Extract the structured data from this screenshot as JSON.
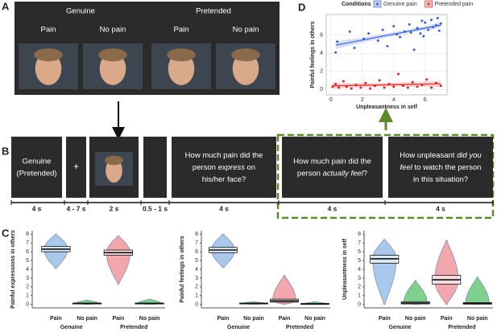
{
  "panel_a": {
    "label": "A",
    "groups": [
      {
        "name": "Genuine",
        "conditions": [
          "Pain",
          "No pain"
        ]
      },
      {
        "name": "Pretended",
        "conditions": [
          "Pain",
          "No pain"
        ]
      }
    ]
  },
  "panel_b": {
    "label": "B",
    "screens": [
      {
        "lines": [
          [
            {
              "text": "Genuine"
            }
          ],
          [
            {
              "text": "(Pretended)"
            }
          ]
        ],
        "duration": "4 s"
      },
      {
        "lines": [
          [
            {
              "text": "+"
            }
          ]
        ],
        "duration": "4 - 7 s"
      },
      {
        "lines": [],
        "duration": "2 s",
        "photo": true
      },
      {
        "lines": [],
        "duration": "0.5 - 1 s"
      },
      {
        "lines": [
          [
            {
              "text": "How much pain did the"
            }
          ],
          [
            {
              "text": "person "
            },
            {
              "text": "express",
              "italic": true
            },
            {
              "text": " on"
            }
          ],
          [
            {
              "text": "his/her face?"
            }
          ]
        ],
        "duration": "4 s"
      },
      {
        "lines": [
          [
            {
              "text": "How much pain did the"
            }
          ],
          [
            {
              "text": "person "
            },
            {
              "text": "actually feel",
              "italic": true
            },
            {
              "text": "?"
            }
          ]
        ],
        "duration": "4 s"
      },
      {
        "lines": [
          [
            {
              "text": "How unpleasant "
            },
            {
              "text": "did you",
              "italic": true
            }
          ],
          [
            {
              "text": "feel",
              "italic": true
            },
            {
              "text": " to watch the person"
            }
          ],
          [
            {
              "text": "in this situation?"
            }
          ]
        ],
        "duration": "4 s"
      }
    ]
  },
  "panel_c": {
    "label": "C",
    "plots": [
      {
        "ylabel": "Painful expressions in others",
        "ylim": [
          -0.4,
          8.4
        ],
        "yticks": [
          0,
          1,
          2,
          3,
          4,
          5,
          6,
          7,
          8
        ],
        "categories": [
          "Pain",
          "No pain",
          "Pain",
          "No pain"
        ],
        "groups": [
          "Genuine",
          "Pretended"
        ],
        "violins": [
          {
            "color": "#a9c8ec",
            "range": [
              4.1,
              8
            ],
            "mean": 6.3,
            "ci": [
              6.0,
              6.6
            ]
          },
          {
            "color": "#7fcf8f",
            "range": [
              0,
              0.5
            ],
            "mean": 0.1,
            "ci": [
              0.05,
              0.15
            ]
          },
          {
            "color": "#f2a7ad",
            "range": [
              2.3,
              7.8
            ],
            "mean": 5.9,
            "ci": [
              5.6,
              6.2
            ]
          },
          {
            "color": "#7fcf8f",
            "range": [
              0,
              0.6
            ],
            "mean": 0.1,
            "ci": [
              0.05,
              0.15
            ]
          }
        ]
      },
      {
        "ylabel": "Painful feelings in others",
        "ylim": [
          -0.4,
          8.4
        ],
        "yticks": [
          0,
          1,
          2,
          3,
          4,
          5,
          6,
          7,
          8
        ],
        "categories": [
          "Pain",
          "No pain",
          "Pain",
          "No pain"
        ],
        "groups": [
          "Genuine",
          "Pretended"
        ],
        "violins": [
          {
            "color": "#a9c8ec",
            "range": [
              4.2,
              8
            ],
            "mean": 6.2,
            "ci": [
              5.9,
              6.5
            ]
          },
          {
            "color": "#7fcf8f",
            "range": [
              0,
              0.3
            ],
            "mean": 0.1,
            "ci": [
              0.05,
              0.15
            ]
          },
          {
            "color": "#f2a7ad",
            "range": [
              0,
              3.3
            ],
            "mean": 0.4,
            "ci": [
              0.25,
              0.6
            ]
          },
          {
            "color": "#7fcf8f",
            "range": [
              0,
              0.3
            ],
            "mean": 0.05,
            "ci": [
              0.02,
              0.1
            ]
          }
        ]
      },
      {
        "ylabel": "Unpleasantness in self",
        "ylim": [
          -0.4,
          8.4
        ],
        "yticks": [
          0,
          1,
          2,
          3,
          4,
          5,
          6,
          7,
          8
        ],
        "categories": [
          "Pain",
          "No pain",
          "Pain",
          "No pain"
        ],
        "groups": [
          "Genuine",
          "Pretended"
        ],
        "violins": [
          {
            "color": "#a9c8ec",
            "range": [
              0,
              7.4
            ],
            "mean": 5.2,
            "ci": [
              4.7,
              5.6
            ]
          },
          {
            "color": "#7fcf8f",
            "range": [
              0,
              2.7
            ],
            "mean": 0.15,
            "ci": [
              0.05,
              0.3
            ]
          },
          {
            "color": "#f2a7ad",
            "range": [
              0,
              7.3
            ],
            "mean": 2.8,
            "ci": [
              2.3,
              3.3
            ]
          },
          {
            "color": "#7fcf8f",
            "range": [
              0,
              3.1
            ],
            "mean": 0.1,
            "ci": [
              0.03,
              0.2
            ]
          }
        ]
      }
    ]
  },
  "panel_d": {
    "label": "D",
    "type": "scatter",
    "legend_title": "Conditions",
    "xlabel": "Unpleasantness in self",
    "ylabel": "Painful feelings in others",
    "xlim": [
      -0.3,
      7.4
    ],
    "ylim": [
      -0.6,
      8.3
    ],
    "xticks": [
      0,
      2,
      4,
      6
    ],
    "yticks": [
      0,
      2,
      4,
      6
    ],
    "grid": true,
    "series": [
      {
        "name": "Genuine pain",
        "color": "#3a5fcd",
        "x": [
          0.3,
          0.4,
          1.2,
          1.5,
          2.1,
          2.4,
          3.0,
          3.3,
          3.6,
          4.0,
          4.2,
          4.4,
          4.7,
          5.0,
          5.1,
          5.3,
          5.5,
          5.7,
          5.9,
          6.0,
          6.2,
          6.4,
          6.5,
          6.7,
          6.8,
          7.0,
          6.9,
          5.8
        ],
        "y": [
          4.1,
          5.3,
          6.4,
          4.6,
          5.6,
          6.2,
          5.4,
          6.6,
          4.8,
          7.0,
          6.1,
          5.8,
          6.4,
          7.2,
          6.3,
          4.4,
          6.8,
          6.2,
          5.9,
          7.4,
          6.6,
          7.7,
          6.9,
          7.1,
          7.9,
          7.3,
          6.5,
          7.6
        ]
      },
      {
        "name": "Pretended pain",
        "color": "#d62728",
        "x": [
          0.1,
          0.3,
          0.5,
          0.8,
          1.0,
          1.3,
          1.6,
          1.9,
          2.2,
          2.5,
          2.8,
          3.1,
          3.4,
          3.7,
          4.0,
          4.3,
          4.6,
          4.9,
          5.2,
          5.5,
          5.8,
          6.1,
          6.4,
          6.7,
          7.0
        ],
        "y": [
          0.3,
          0.6,
          0.2,
          0.9,
          0.3,
          0.1,
          0.5,
          0.2,
          0.7,
          0.1,
          0.4,
          1.0,
          0.2,
          0.6,
          0.3,
          1.7,
          0.4,
          0.2,
          0.8,
          0.3,
          0.5,
          1.1,
          0.2,
          0.7,
          0.4
        ]
      }
    ]
  }
}
